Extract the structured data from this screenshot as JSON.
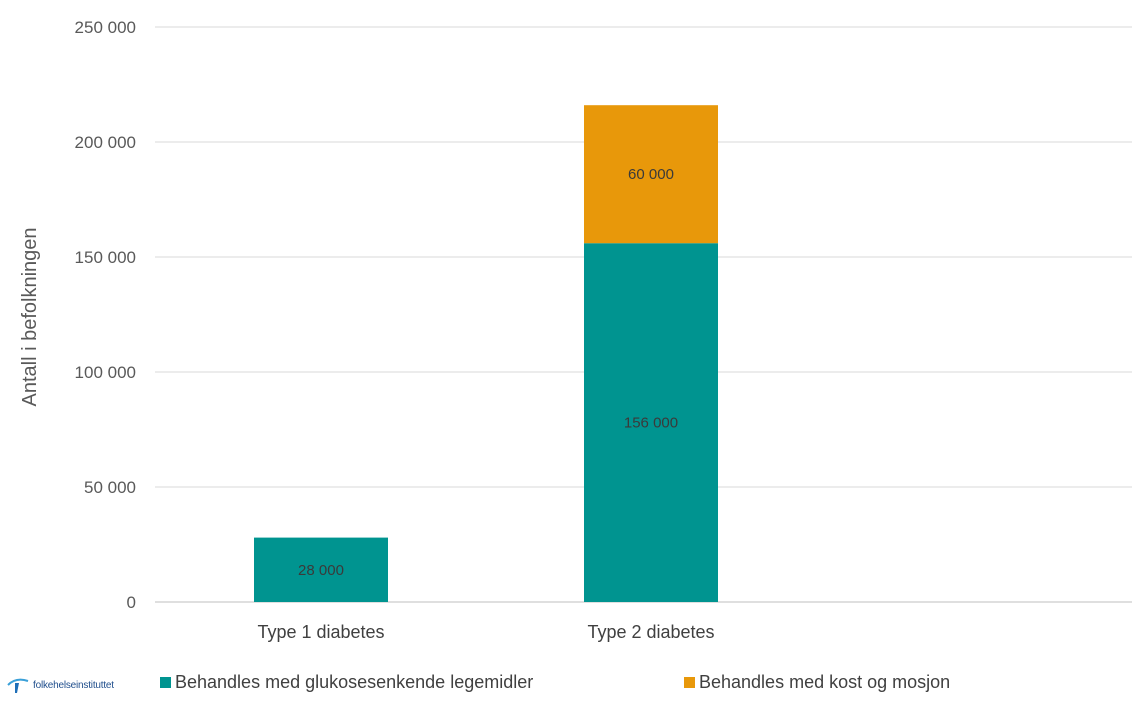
{
  "chart_data": {
    "type": "bar",
    "stacked": true,
    "categories": [
      "Type 1 diabetes",
      "Type 2 diabetes"
    ],
    "series": [
      {
        "name": "Behandles med glukosesenkende legemidler",
        "color": "#009490",
        "values": [
          28000,
          156000
        ],
        "labels": [
          "28 000",
          "156 000"
        ]
      },
      {
        "name": "Behandles med kost og mosjon",
        "color": "#e8980a",
        "values": [
          0,
          60000
        ],
        "labels": [
          "",
          "60 000"
        ]
      }
    ],
    "ylabel": "Antall i befolkningen",
    "xlabel": "",
    "ylim": [
      0,
      250000
    ],
    "yticks": [
      {
        "value": 0,
        "label": "0"
      },
      {
        "value": 50000,
        "label": "50 000"
      },
      {
        "value": 100000,
        "label": "100 000"
      },
      {
        "value": 150000,
        "label": "150 000"
      },
      {
        "value": 200000,
        "label": "200 000"
      },
      {
        "value": 250000,
        "label": "250 000"
      }
    ],
    "grid": true,
    "legend_position": "bottom"
  },
  "logo": {
    "text": "folkehelseinstituttet",
    "icon": "fhi-logo-icon"
  }
}
